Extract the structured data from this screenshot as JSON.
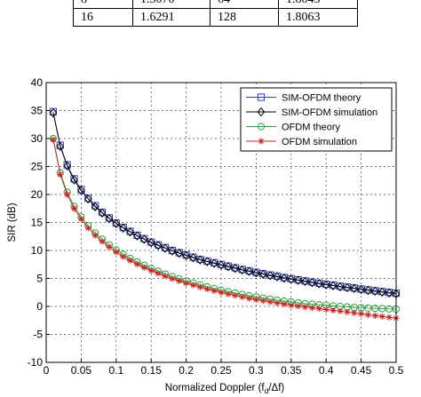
{
  "table": {
    "rows": [
      [
        "8",
        "1.5070",
        "64",
        "1.8043"
      ],
      [
        "16",
        "1.6291",
        "128",
        "1.8063"
      ]
    ]
  },
  "chart_data": {
    "type": "line",
    "title": "",
    "xlabel": "Normalized Doppler (f",
    "xlabel_sub": "d",
    "xlabel_tail": "/Δf)",
    "ylabel": "SIR (dB)",
    "xlim": [
      0,
      0.5
    ],
    "ylim": [
      -10,
      40
    ],
    "x_ticks": [
      0,
      0.05,
      0.1,
      0.15,
      0.2,
      0.25,
      0.3,
      0.35,
      0.4,
      0.45,
      0.5
    ],
    "x_tick_labels": [
      "0",
      "0.05",
      "0.1",
      "0.15",
      "0.2",
      "0.25",
      "0.3",
      "0.35",
      "0.4",
      "0.45",
      "0.5"
    ],
    "y_ticks": [
      -10,
      -5,
      0,
      5,
      10,
      15,
      20,
      25,
      30,
      35,
      40
    ],
    "y_tick_labels": [
      "-10",
      "-5",
      "0",
      "5",
      "10",
      "15",
      "20",
      "25",
      "30",
      "35",
      "40"
    ],
    "grid": true,
    "legend_position": "top-right",
    "x": [
      0.01,
      0.02,
      0.03,
      0.04,
      0.05,
      0.06,
      0.07,
      0.08,
      0.09,
      0.1,
      0.11,
      0.12,
      0.13,
      0.14,
      0.15,
      0.16,
      0.17,
      0.18,
      0.19,
      0.2,
      0.21,
      0.22,
      0.23,
      0.24,
      0.25,
      0.26,
      0.27,
      0.28,
      0.29,
      0.3,
      0.31,
      0.32,
      0.33,
      0.34,
      0.35,
      0.36,
      0.37,
      0.38,
      0.39,
      0.4,
      0.41,
      0.42,
      0.43,
      0.44,
      0.45,
      0.46,
      0.47,
      0.48,
      0.49,
      0.5
    ],
    "series": [
      {
        "name": "SIM-OFDM theory",
        "color": "#2b3fb0",
        "marker": "square",
        "values": [
          34.8,
          28.8,
          25.3,
          22.8,
          20.9,
          19.3,
          18.0,
          16.8,
          15.8,
          14.9,
          14.1,
          13.4,
          12.7,
          12.1,
          11.5,
          11.0,
          10.5,
          10.0,
          9.6,
          9.2,
          8.8,
          8.4,
          8.1,
          7.8,
          7.5,
          7.2,
          6.9,
          6.6,
          6.35,
          6.1,
          5.85,
          5.6,
          5.4,
          5.15,
          4.95,
          4.75,
          4.55,
          4.35,
          4.15,
          3.95,
          3.8,
          3.6,
          3.45,
          3.3,
          3.1,
          2.95,
          2.8,
          2.65,
          2.5,
          2.35
        ]
      },
      {
        "name": "SIM-OFDM simulation",
        "color": "#000000",
        "marker": "diamond",
        "values": [
          34.6,
          28.6,
          25.1,
          22.6,
          20.7,
          19.2,
          17.8,
          16.7,
          15.7,
          14.8,
          14.0,
          13.3,
          12.6,
          12.0,
          11.4,
          10.9,
          10.4,
          9.9,
          9.5,
          9.1,
          8.7,
          8.3,
          8.0,
          7.7,
          7.4,
          7.1,
          6.8,
          6.5,
          6.25,
          6.0,
          5.75,
          5.5,
          5.3,
          5.05,
          4.85,
          4.65,
          4.45,
          4.25,
          4.05,
          3.85,
          3.7,
          3.5,
          3.35,
          3.2,
          3.0,
          2.85,
          2.7,
          2.55,
          2.4,
          2.25
        ]
      },
      {
        "name": "OFDM theory",
        "color": "#2ea043",
        "marker": "circle",
        "values": [
          30.0,
          23.9,
          20.4,
          17.9,
          16.0,
          14.4,
          13.1,
          12.0,
          11.0,
          10.1,
          9.3,
          8.6,
          7.95,
          7.35,
          6.8,
          6.3,
          5.8,
          5.35,
          4.95,
          4.55,
          4.2,
          3.85,
          3.5,
          3.2,
          2.9,
          2.65,
          2.4,
          2.15,
          1.9,
          1.7,
          1.5,
          1.3,
          1.1,
          0.95,
          0.8,
          0.65,
          0.5,
          0.4,
          0.3,
          0.2,
          0.1,
          0.0,
          -0.1,
          -0.2,
          -0.25,
          -0.3,
          -0.35,
          -0.4,
          -0.45,
          -0.5
        ]
      },
      {
        "name": "OFDM simulation",
        "color": "#cc2222",
        "marker": "star",
        "values": [
          29.8,
          23.6,
          20.0,
          17.5,
          15.6,
          14.0,
          12.7,
          11.6,
          10.6,
          9.7,
          8.9,
          8.2,
          7.55,
          6.95,
          6.4,
          5.9,
          5.4,
          4.95,
          4.55,
          4.15,
          3.8,
          3.45,
          3.1,
          2.8,
          2.5,
          2.2,
          1.95,
          1.7,
          1.45,
          1.2,
          1.0,
          0.8,
          0.6,
          0.4,
          0.2,
          0.05,
          -0.1,
          -0.25,
          -0.4,
          -0.55,
          -0.7,
          -0.85,
          -1.0,
          -1.15,
          -1.3,
          -1.5,
          -1.65,
          -1.8,
          -1.95,
          -2.1
        ]
      }
    ]
  }
}
